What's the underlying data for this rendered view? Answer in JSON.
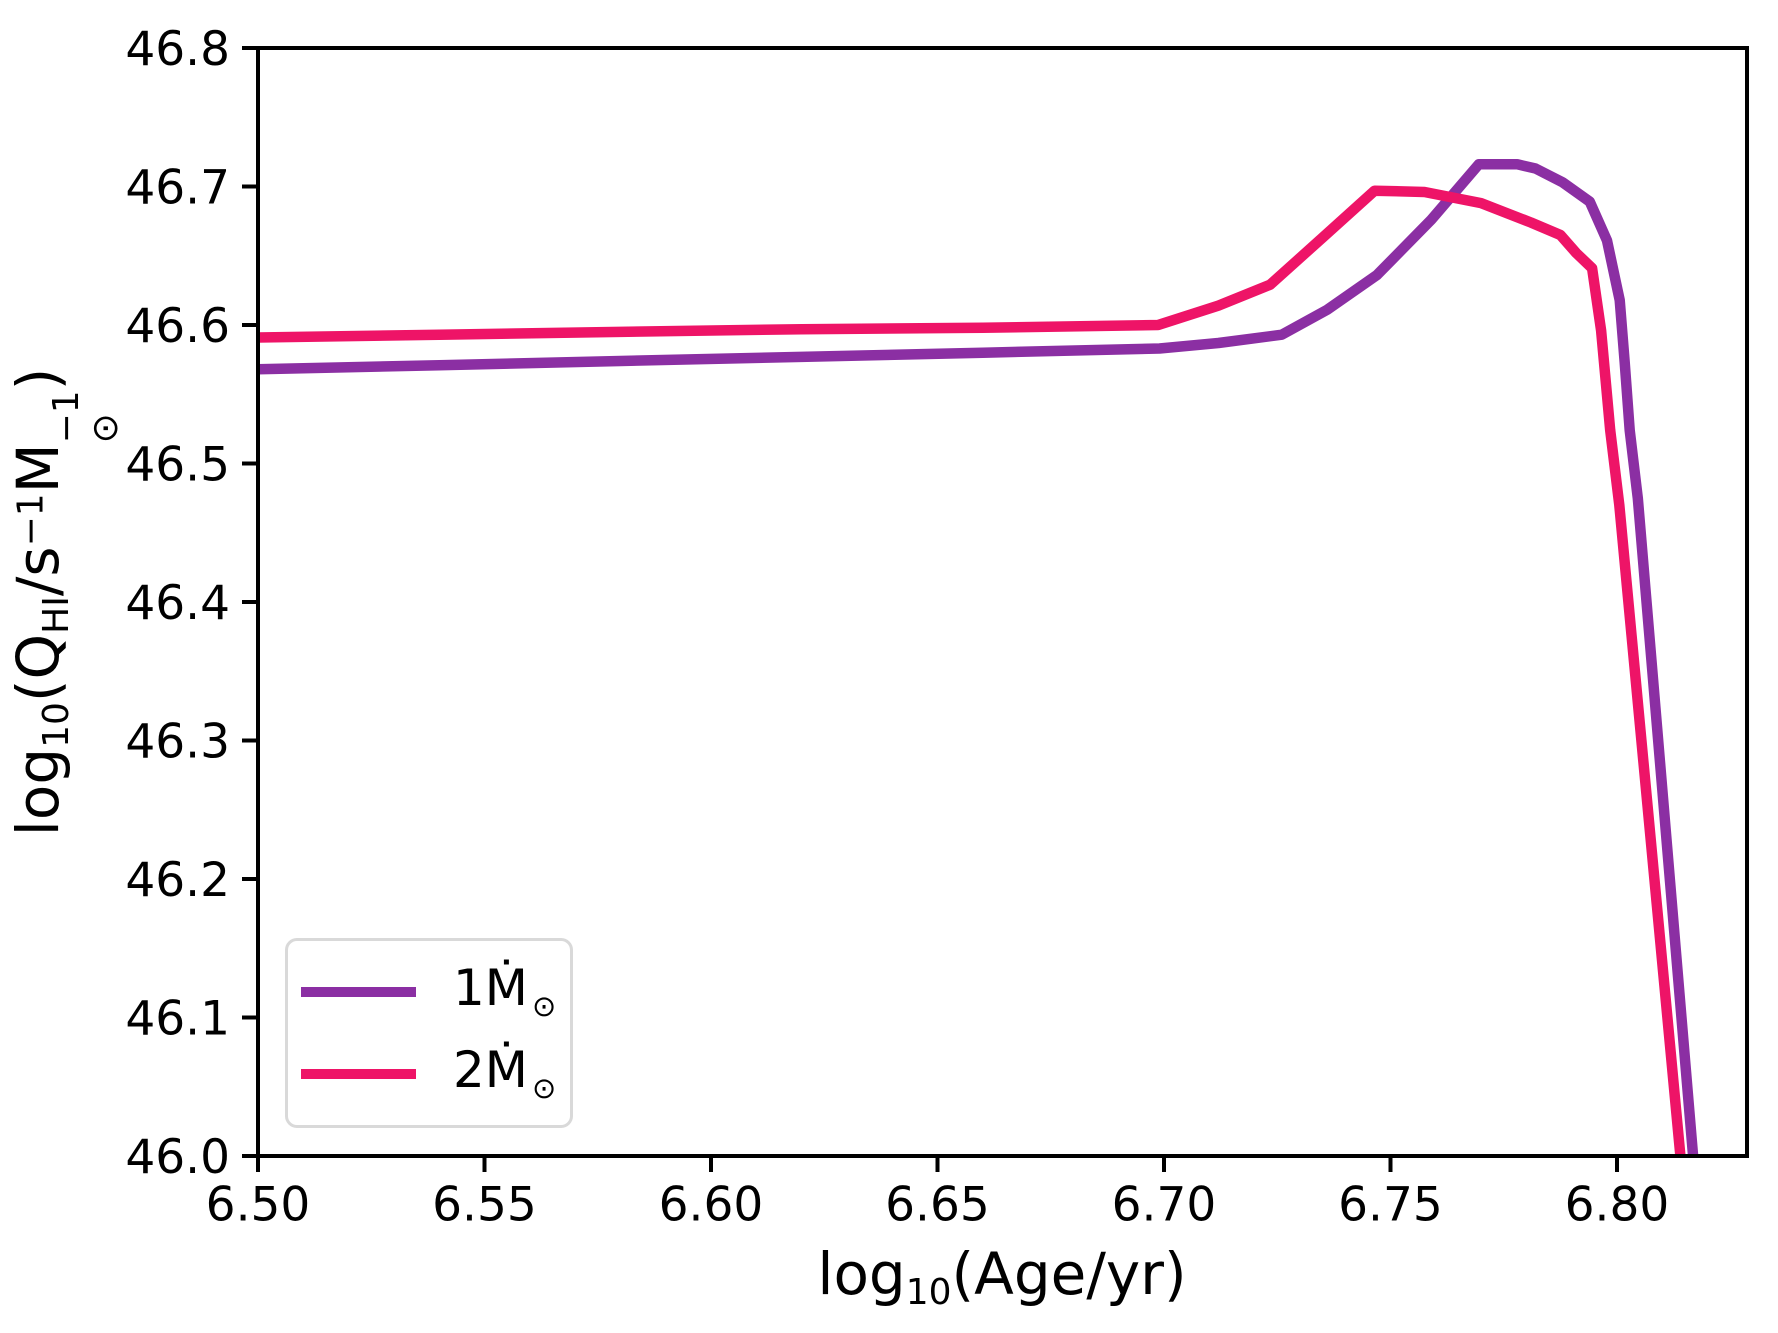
{
  "figure": {
    "background": "#ffffff"
  },
  "axes": {
    "xlabel": {
      "log": "log",
      "sub": "10",
      "rest": "(Age/yr)"
    },
    "ylabel": {
      "log": "log",
      "sub": "10",
      "open": "(",
      "q": "Q",
      "q_hat": "ˆ",
      "q_sub": "HI",
      "slash_s": "/s",
      "s_sup": "−1",
      "m": "M",
      "m_sup": "−1",
      "m_sub": "⊙",
      "close": ")"
    }
  },
  "legend": {
    "entries": [
      {
        "name": "1mdot",
        "label": "1Ṁ",
        "sub": "⊙",
        "color": "#8b2fa3"
      },
      {
        "name": "2mdot",
        "label": "2Ṁ",
        "sub": "⊙",
        "color": "#ee1467"
      }
    ]
  },
  "chart_data": {
    "type": "line",
    "title": "",
    "xlabel": "log10(Age/yr)",
    "ylabel": "log10(Qhat_HI/s^-1 Msun^-1)",
    "xlim": [
      6.5,
      6.8287
    ],
    "ylim": [
      46.0,
      46.8
    ],
    "grid": false,
    "legend_position": "lower left",
    "xticks": {
      "values": [
        6.5,
        6.55,
        6.6,
        6.65,
        6.7,
        6.75,
        6.8
      ],
      "labels": [
        "6.50",
        "6.55",
        "6.60",
        "6.65",
        "6.70",
        "6.75",
        "6.80"
      ]
    },
    "yticks": {
      "values": [
        46.0,
        46.1,
        46.2,
        46.3,
        46.4,
        46.5,
        46.6,
        46.7,
        46.8
      ],
      "labels": [
        "46.0",
        "46.1",
        "46.2",
        "46.3",
        "46.4",
        "46.5",
        "46.6",
        "46.7",
        "46.8"
      ]
    },
    "series": [
      {
        "name": "1Mdot_sun",
        "color": "#8b2fa3",
        "linewidth": 10.5,
        "x": [
          6.5,
          6.54,
          6.58,
          6.62,
          6.66,
          6.699,
          6.712,
          6.726,
          6.736,
          6.747,
          6.759,
          6.7695,
          6.778,
          6.782,
          6.788,
          6.794,
          6.7978,
          6.8006,
          6.8017,
          6.8028,
          6.8046,
          6.8168
        ],
        "y": [
          46.568,
          46.571,
          46.574,
          46.577,
          46.58,
          46.583,
          46.587,
          46.593,
          46.611,
          46.636,
          46.676,
          46.716,
          46.716,
          46.713,
          46.703,
          46.689,
          46.661,
          46.618,
          46.573,
          46.524,
          46.475,
          46.0
        ]
      },
      {
        "name": "2Mdot_sun",
        "color": "#ee1467",
        "linewidth": 10.5,
        "x": [
          6.5,
          6.54,
          6.58,
          6.62,
          6.66,
          6.6987,
          6.712,
          6.7234,
          6.735,
          6.7465,
          6.7575,
          6.77,
          6.781,
          6.7875,
          6.791,
          6.7945,
          6.7965,
          6.7985,
          6.8005,
          6.814
        ],
        "y": [
          46.591,
          46.593,
          46.595,
          46.597,
          46.598,
          46.6,
          46.614,
          46.629,
          46.663,
          46.697,
          46.696,
          46.688,
          46.674,
          46.665,
          46.652,
          46.641,
          46.596,
          46.524,
          46.47,
          46.0
        ]
      }
    ]
  }
}
